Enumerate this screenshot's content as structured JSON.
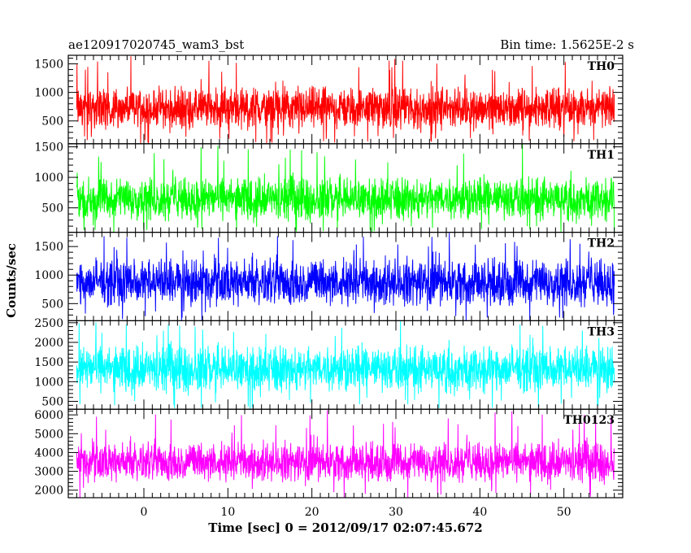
{
  "header": {
    "left_title": "ae120917020745_wam3_bst",
    "right_title": "Bin time: 1.5625E-2 s"
  },
  "chart_data": {
    "type": "line",
    "xlabel": "Time [sec] 0 = 2012/09/17 02:07:45.672",
    "ylabel": "Counts/sec",
    "xlim": [
      -9,
      57
    ],
    "x_data_range": [
      -8.0,
      56.0
    ],
    "x_ticks": [
      0,
      10,
      20,
      30,
      40,
      50
    ],
    "x_tick_labels": [
      "0",
      "10",
      "20",
      "30",
      "40",
      "50"
    ],
    "bin_time_s": 0.015625,
    "grid": false,
    "panels": [
      {
        "name": "TH0",
        "color": "#ff0000",
        "ylim": [
          100,
          1650
        ],
        "y_ticks": [
          500,
          1000,
          1500
        ],
        "y_tick_labels": [
          "500",
          "1000",
          "1500"
        ],
        "typical_low": 300,
        "typical_high": 1150,
        "dip_min": 100,
        "peak_max": 1650
      },
      {
        "name": "TH1",
        "color": "#00ff00",
        "ylim": [
          100,
          1550
        ],
        "y_ticks": [
          500,
          1000,
          1500
        ],
        "y_tick_labels": [
          "500",
          "1000",
          "1500"
        ],
        "typical_low": 250,
        "typical_high": 1050,
        "dip_min": 100,
        "peak_max": 1550
      },
      {
        "name": "TH2",
        "color": "#0000ff",
        "ylim": [
          200,
          1750
        ],
        "y_ticks": [
          500,
          1000,
          1500
        ],
        "y_tick_labels": [
          "500",
          "1000",
          "1500"
        ],
        "typical_low": 400,
        "typical_high": 1350,
        "dip_min": 200,
        "peak_max": 1750
      },
      {
        "name": "TH3",
        "color": "#00ffff",
        "ylim": [
          300,
          2550
        ],
        "y_ticks": [
          500,
          1000,
          1500,
          2000,
          2500
        ],
        "y_tick_labels": [
          "500",
          "1000",
          "1500",
          "2000",
          "2500"
        ],
        "typical_low": 650,
        "typical_high": 2000,
        "dip_min": 300,
        "peak_max": 2550
      },
      {
        "name": "TH0123",
        "color": "#ff00ff",
        "ylim": [
          1600,
          6300
        ],
        "y_ticks": [
          2000,
          3000,
          4000,
          5000,
          6000
        ],
        "y_tick_labels": [
          "2000",
          "3000",
          "4000",
          "5000",
          "6000"
        ],
        "typical_low": 2300,
        "typical_high": 4700,
        "dip_min": 1600,
        "peak_max": 6300
      }
    ]
  }
}
